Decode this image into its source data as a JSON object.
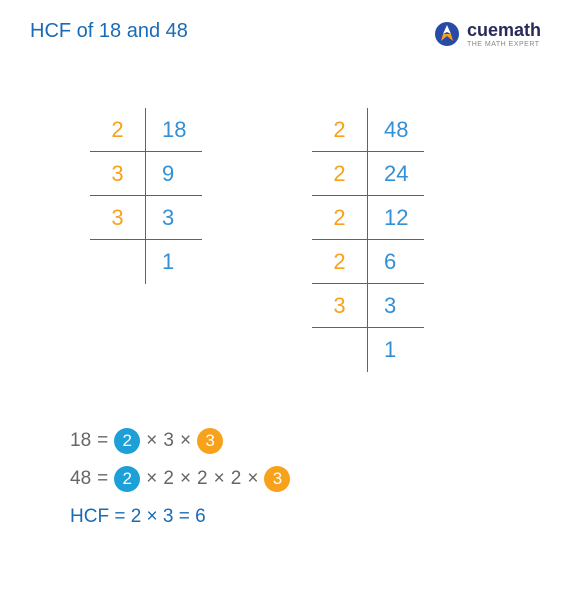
{
  "title": "HCF of 18 and 48",
  "logo": {
    "brand": "cuemath",
    "tagline": "THE MATH EXPERT"
  },
  "table_left": {
    "rows": [
      {
        "factor": "2",
        "value": "18"
      },
      {
        "factor": "3",
        "value": "9"
      },
      {
        "factor": "3",
        "value": "3"
      },
      {
        "factor": "",
        "value": "1"
      }
    ],
    "cell_colors": {
      "factor": "#f8a11a",
      "value": "#3290d6",
      "border": "#2b6fb3"
    }
  },
  "table_right": {
    "rows": [
      {
        "factor": "2",
        "value": "48"
      },
      {
        "factor": "2",
        "value": "24"
      },
      {
        "factor": "2",
        "value": "12"
      },
      {
        "factor": "2",
        "value": "6"
      },
      {
        "factor": "3",
        "value": "3"
      },
      {
        "factor": "",
        "value": "1"
      }
    ],
    "cell_colors": {
      "factor": "#f8a11a",
      "value": "#3290d6",
      "border": "#2b6fb3"
    }
  },
  "equations": {
    "line1": {
      "lhs": "18",
      "eq": "=",
      "parts": [
        {
          "kind": "circ",
          "color": "blue",
          "text": "2"
        },
        {
          "kind": "op",
          "text": "×"
        },
        {
          "kind": "plain",
          "text": "3"
        },
        {
          "kind": "op",
          "text": "×"
        },
        {
          "kind": "circ",
          "color": "orange",
          "text": "3"
        }
      ]
    },
    "line2": {
      "lhs": "48",
      "eq": "=",
      "parts": [
        {
          "kind": "circ",
          "color": "blue",
          "text": "2"
        },
        {
          "kind": "op",
          "text": "×"
        },
        {
          "kind": "plain",
          "text": "2"
        },
        {
          "kind": "op",
          "text": "×"
        },
        {
          "kind": "plain",
          "text": "2"
        },
        {
          "kind": "op",
          "text": "×"
        },
        {
          "kind": "plain",
          "text": "2"
        },
        {
          "kind": "op",
          "text": "×"
        },
        {
          "kind": "circ",
          "color": "orange",
          "text": "3"
        }
      ]
    },
    "result": "HCF = 2 × 3 = 6"
  },
  "colors": {
    "title": "#1a6bb5",
    "circ_blue": "#1da0d8",
    "circ_orange": "#f8a11a",
    "result": "#1a6bb5",
    "background": "#ffffff"
  }
}
